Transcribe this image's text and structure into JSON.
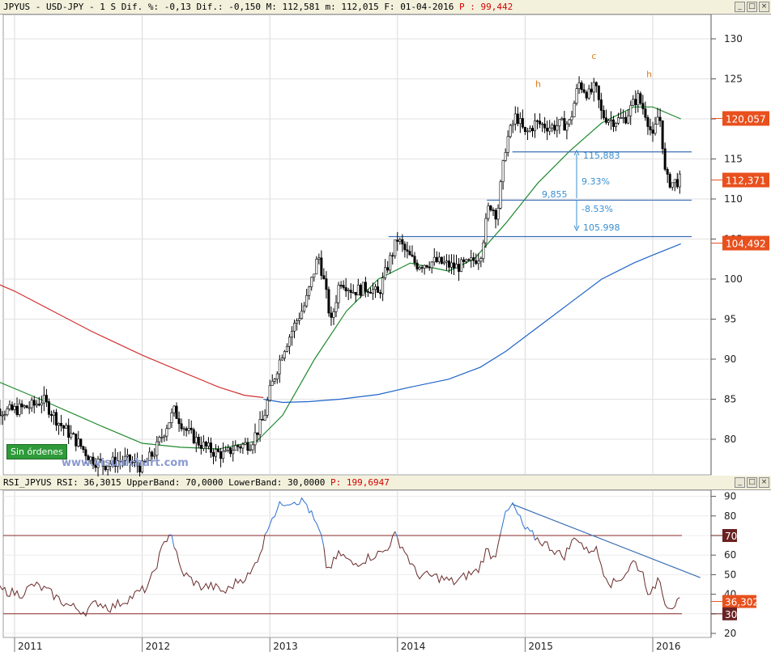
{
  "price_header": {
    "ticker": "JPYUS",
    "pair": "USD-JPY",
    "period": "1 S",
    "pct_label": "Dif. %:",
    "pct_value": "-0,13",
    "dif_label": "Dif.:",
    "dif_value": "-0,150",
    "max_label": "M:",
    "max_value": "112,581",
    "min_label": "m:",
    "min_value": "112,015",
    "date_label": "F:",
    "date_value": "01-04-2016",
    "p_label": "P :",
    "p_value": "99,442"
  },
  "rsi_header": {
    "label": "RSI_JPYUS RSI:",
    "rsi_value": "36,3015",
    "upper_label": "UpperBand:",
    "upper_value": "70,0000",
    "lower_label": "LowerBand:",
    "lower_value": "30,0000",
    "p_label": "P:",
    "p_value": "199,6947"
  },
  "window_buttons": [
    "_",
    "□",
    "×"
  ],
  "badge_text": "Sin órdenes",
  "watermark": "www.visualchart.com",
  "colors": {
    "bg_header": "#f3f1dc",
    "price": "#000000",
    "ma_fast": "#1f8a2e",
    "ma_mid": "#d23232",
    "ma_slow": "#1f64c8",
    "level_line": "#3a6fb5",
    "fib_text": "#3a8fd0",
    "wave_label": "#e07b1a",
    "price_tag": "#e8501e",
    "rsi_line": "#6a2b2b",
    "rsi_over": "#2d6fd0",
    "band": "#8a2a2a"
  },
  "chart_data": [
    {
      "type": "candlestick",
      "title": "JPYUS - USD-JPY - 1 S",
      "x_ticks": [
        "2011",
        "2012",
        "2013",
        "2014",
        "2015",
        "2016"
      ],
      "ylim": [
        75,
        133
      ],
      "y_ticks": [
        80,
        85,
        90,
        95,
        100,
        105,
        110,
        115,
        120,
        125,
        130
      ],
      "price_series_anchors": [
        [
          2010.75,
          84.0
        ],
        [
          2010.95,
          83.5
        ],
        [
          2011.15,
          84.2
        ],
        [
          2011.22,
          85.0
        ],
        [
          2011.35,
          82.0
        ],
        [
          2011.5,
          79.5
        ],
        [
          2011.6,
          77.5
        ],
        [
          2011.7,
          76.8
        ],
        [
          2011.85,
          77.5
        ],
        [
          2012.0,
          76.5
        ],
        [
          2012.1,
          78.5
        ],
        [
          2012.2,
          82.0
        ],
        [
          2012.25,
          83.5
        ],
        [
          2012.35,
          81.0
        ],
        [
          2012.45,
          79.5
        ],
        [
          2012.55,
          78.5
        ],
        [
          2012.65,
          78.0
        ],
        [
          2012.72,
          79.0
        ],
        [
          2012.85,
          79.5
        ],
        [
          2012.95,
          82.5
        ],
        [
          2013.0,
          86.0
        ],
        [
          2013.1,
          91.0
        ],
        [
          2013.2,
          94.5
        ],
        [
          2013.28,
          97.0
        ],
        [
          2013.38,
          103.0
        ],
        [
          2013.42,
          100.0
        ],
        [
          2013.48,
          94.5
        ],
        [
          2013.55,
          100.0
        ],
        [
          2013.65,
          98.5
        ],
        [
          2013.78,
          99.0
        ],
        [
          2013.85,
          98.0
        ],
        [
          2013.92,
          101.5
        ],
        [
          2014.0,
          105.0
        ],
        [
          2014.08,
          103.0
        ],
        [
          2014.15,
          101.8
        ],
        [
          2014.3,
          102.2
        ],
        [
          2014.45,
          101.5
        ],
        [
          2014.55,
          101.8
        ],
        [
          2014.65,
          103.0
        ],
        [
          2014.72,
          109.5
        ],
        [
          2014.78,
          108.0
        ],
        [
          2014.85,
          117.0
        ],
        [
          2014.93,
          120.5
        ],
        [
          2015.0,
          118.0
        ],
        [
          2015.08,
          119.5
        ],
        [
          2015.2,
          119.0
        ],
        [
          2015.35,
          119.5
        ],
        [
          2015.42,
          124.5
        ],
        [
          2015.5,
          123.0
        ],
        [
          2015.55,
          124.0
        ],
        [
          2015.6,
          120.5
        ],
        [
          2015.68,
          119.8
        ],
        [
          2015.78,
          120.0
        ],
        [
          2015.88,
          122.8
        ],
        [
          2015.95,
          120.5
        ],
        [
          2016.0,
          117.5
        ],
        [
          2016.05,
          121.0
        ],
        [
          2016.08,
          116.5
        ],
        [
          2016.1,
          112.5
        ],
        [
          2016.15,
          112.0
        ],
        [
          2016.22,
          112.4
        ]
      ],
      "ma_series": [
        {
          "name": "",
          "color_key": "ma_fast",
          "points": [
            [
              2010.75,
              88.0
            ],
            [
              2011.2,
              85.0
            ],
            [
              2011.7,
              81.5
            ],
            [
              2012.0,
              79.5
            ],
            [
              2012.3,
              79.0
            ],
            [
              2012.6,
              78.8
            ],
            [
              2012.9,
              79.8
            ],
            [
              2013.1,
              83.0
            ],
            [
              2013.35,
              90.0
            ],
            [
              2013.6,
              96.0
            ],
            [
              2013.85,
              100.0
            ],
            [
              2014.1,
              102.0
            ],
            [
              2014.4,
              101.0
            ],
            [
              2014.6,
              102.5
            ],
            [
              2014.85,
              107.0
            ],
            [
              2015.1,
              112.0
            ],
            [
              2015.35,
              116.0
            ],
            [
              2015.6,
              119.5
            ],
            [
              2015.85,
              121.5
            ],
            [
              2016.0,
              121.5
            ],
            [
              2016.22,
              120.0
            ]
          ]
        },
        {
          "name": "",
          "color_key": "ma_mid",
          "points": [
            [
              2010.75,
              100.2
            ],
            [
              2011.0,
              98.5
            ],
            [
              2011.3,
              96.0
            ],
            [
              2011.6,
              93.5
            ],
            [
              2012.0,
              90.5
            ],
            [
              2012.3,
              88.5
            ],
            [
              2012.6,
              86.5
            ],
            [
              2012.8,
              85.5
            ],
            [
              2012.95,
              85.2
            ]
          ]
        },
        {
          "name": "",
          "color_key": "ma_slow",
          "points": [
            [
              2012.95,
              85.0
            ],
            [
              2013.1,
              84.6
            ],
            [
              2013.3,
              84.7
            ],
            [
              2013.55,
              85.0
            ],
            [
              2013.85,
              85.6
            ],
            [
              2014.1,
              86.5
            ],
            [
              2014.4,
              87.5
            ],
            [
              2014.65,
              89.0
            ],
            [
              2014.85,
              91.0
            ],
            [
              2015.1,
              94.0
            ],
            [
              2015.35,
              97.0
            ],
            [
              2015.6,
              100.0
            ],
            [
              2015.85,
              102.0
            ],
            [
              2016.0,
              103.0
            ],
            [
              2016.22,
              104.4
            ]
          ]
        }
      ],
      "levels": [
        {
          "value": 115.883,
          "x_start": 2014.9
        },
        {
          "value": 109.855,
          "x_start": 2014.7
        },
        {
          "value": 105.3,
          "x_start": 2013.93
        }
      ],
      "fib_labels": [
        "115,883",
        "9,855",
        "9.33%",
        "-8.53%",
        "105.998"
      ],
      "wave_labels": [
        {
          "text": "h",
          "x": 2015.08,
          "y": 124.0
        },
        {
          "text": "c",
          "x": 2015.52,
          "y": 127.5
        },
        {
          "text": "h",
          "x": 2015.95,
          "y": 125.2
        }
      ],
      "price_tags": [
        "120,057",
        "112,371",
        "104,492"
      ],
      "last_price": 112.371
    },
    {
      "type": "line",
      "title": "RSI_JPYUS",
      "ylim": [
        18,
        94
      ],
      "y_ticks": [
        20,
        30,
        40,
        50,
        60,
        70,
        80,
        90
      ],
      "upper_band": 70,
      "lower_band": 30,
      "rsi_anchors": [
        [
          2010.75,
          43.0
        ],
        [
          2010.9,
          42.0
        ],
        [
          2011.05,
          40.0
        ],
        [
          2011.15,
          45.0
        ],
        [
          2011.25,
          42.0
        ],
        [
          2011.4,
          35.0
        ],
        [
          2011.55,
          31.0
        ],
        [
          2011.65,
          36.0
        ],
        [
          2011.75,
          33.0
        ],
        [
          2011.9,
          38.0
        ],
        [
          2012.05,
          44.0
        ],
        [
          2012.15,
          62.0
        ],
        [
          2012.22,
          73.0
        ],
        [
          2012.3,
          52.0
        ],
        [
          2012.45,
          44.0
        ],
        [
          2012.55,
          44.0
        ],
        [
          2012.65,
          41.0
        ],
        [
          2012.75,
          47.0
        ],
        [
          2012.85,
          50.0
        ],
        [
          2012.95,
          66.0
        ],
        [
          2013.0,
          78.0
        ],
        [
          2013.1,
          87.0
        ],
        [
          2013.2,
          88.0
        ],
        [
          2013.28,
          87.0
        ],
        [
          2013.33,
          80.0
        ],
        [
          2013.4,
          70.0
        ],
        [
          2013.45,
          52.0
        ],
        [
          2013.55,
          61.0
        ],
        [
          2013.65,
          55.0
        ],
        [
          2013.78,
          59.0
        ],
        [
          2013.9,
          62.0
        ],
        [
          2013.98,
          70.0
        ],
        [
          2014.05,
          63.0
        ],
        [
          2014.15,
          50.0
        ],
        [
          2014.3,
          49.0
        ],
        [
          2014.45,
          46.0
        ],
        [
          2014.55,
          50.0
        ],
        [
          2014.63,
          52.0
        ],
        [
          2014.7,
          63.0
        ],
        [
          2014.76,
          58.0
        ],
        [
          2014.82,
          77.0
        ],
        [
          2014.9,
          86.0
        ],
        [
          2015.0,
          73.0
        ],
        [
          2015.1,
          68.0
        ],
        [
          2015.2,
          64.0
        ],
        [
          2015.3,
          59.0
        ],
        [
          2015.4,
          70.0
        ],
        [
          2015.48,
          62.0
        ],
        [
          2015.55,
          64.0
        ],
        [
          2015.62,
          51.0
        ],
        [
          2015.68,
          45.0
        ],
        [
          2015.78,
          50.0
        ],
        [
          2015.85,
          57.0
        ],
        [
          2015.92,
          51.0
        ],
        [
          2015.98,
          38.0
        ],
        [
          2016.05,
          50.0
        ],
        [
          2016.1,
          35.0
        ],
        [
          2016.15,
          34.0
        ],
        [
          2016.22,
          36.3
        ]
      ],
      "trendline": [
        [
          2014.9,
          86.0
        ],
        [
          2016.22,
          46.0
        ]
      ],
      "value_tags": [
        "70",
        "36,302",
        "30"
      ]
    }
  ]
}
